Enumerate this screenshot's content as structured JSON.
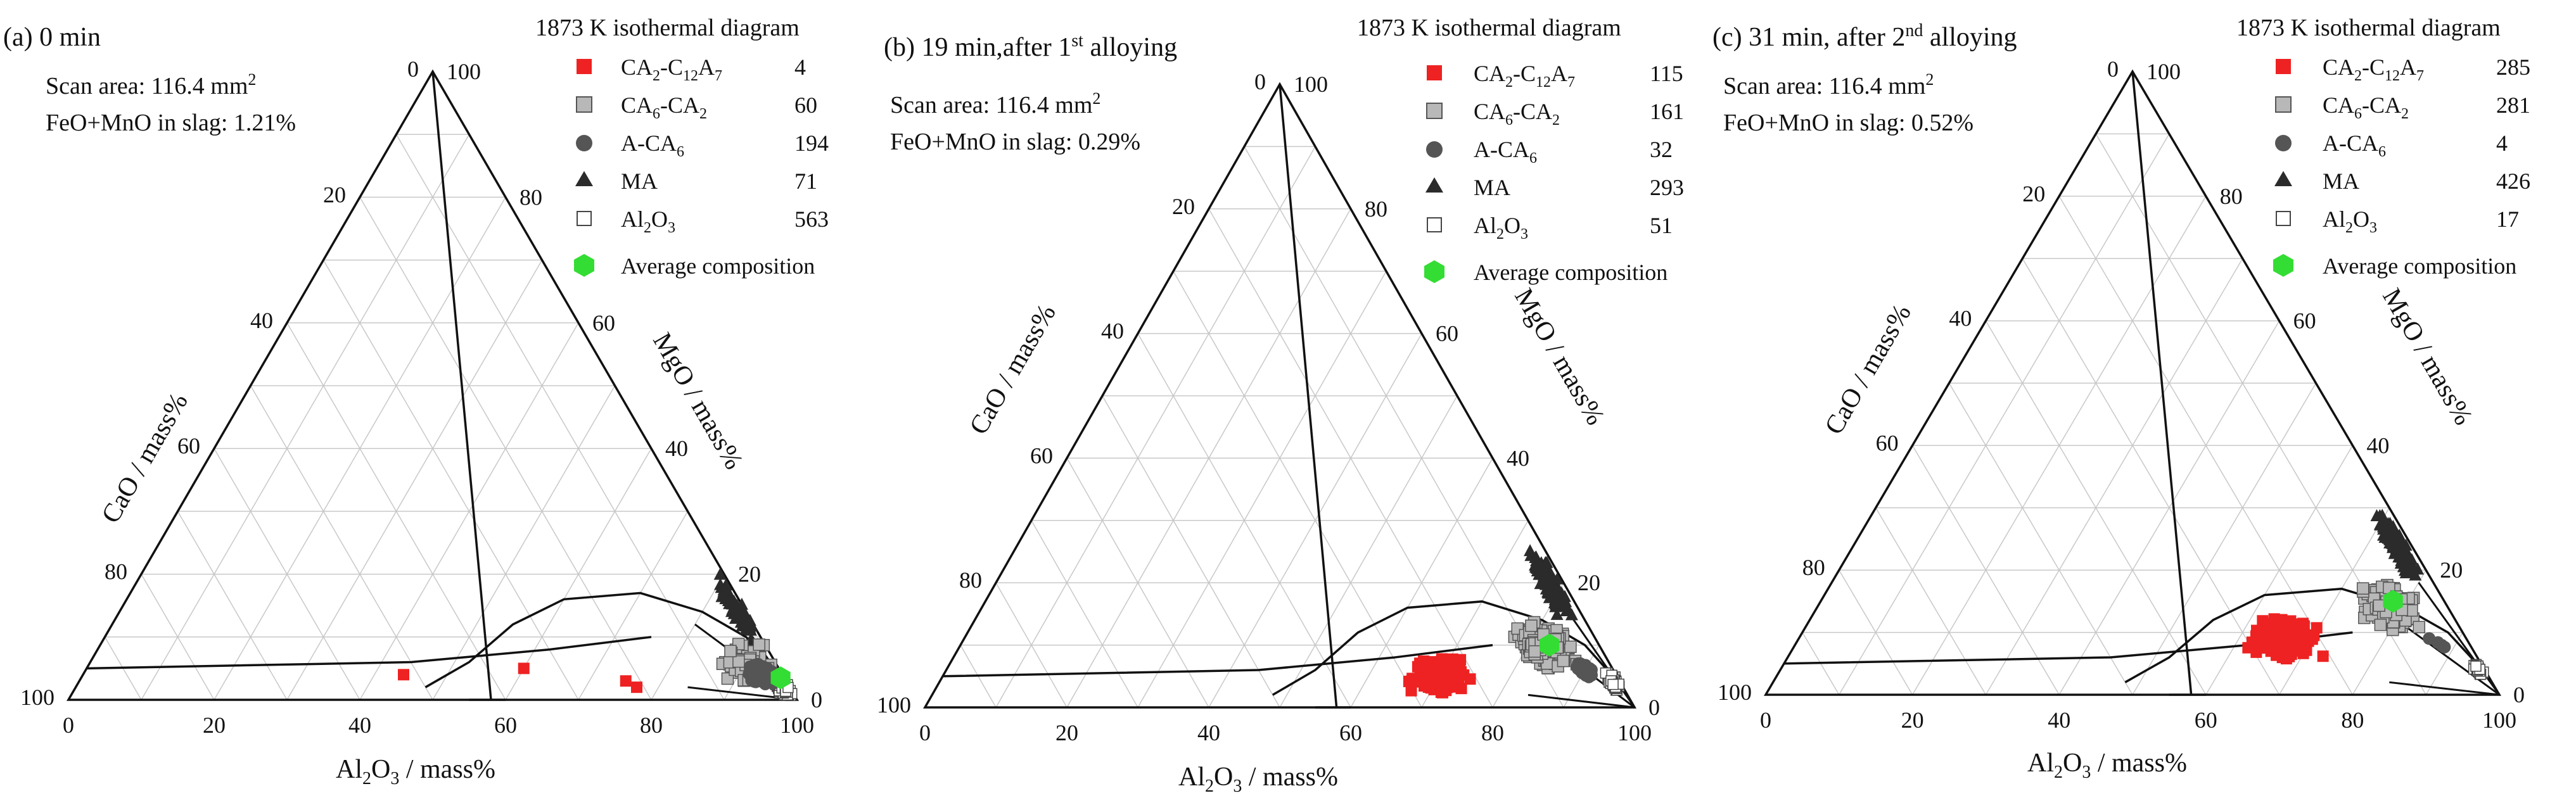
{
  "figure": {
    "background": "#ffffff",
    "colors": {
      "ca2": "#ee2222",
      "ca6": "#b8b8b8",
      "aca6": "#555555",
      "ma": "#2b2b2b",
      "al2o3": "#ffffff",
      "avg": "#33dd33",
      "grid": "#c8c8c8",
      "line": "#111111"
    },
    "legend_header": "1873 K isothermal diagram",
    "legend_labels": {
      "ca2": "CA2-C12A7",
      "ca6": "CA6-CA2",
      "aca6": "A-CA6",
      "ma": "MA",
      "al2o3": "Al2O3",
      "avg": "Average composition"
    },
    "icons": {
      "ca2": "red-square-marker-icon",
      "ca6": "gray-square-marker-icon",
      "aca6": "dark-circle-marker-icon",
      "ma": "black-triangle-marker-icon",
      "al2o3": "open-square-marker-icon",
      "avg": "green-hexagon-marker-icon"
    },
    "axis_labels": {
      "bottom": "Al2O3 / mass%",
      "left": "CaO / mass%",
      "right": "MgO / mass%"
    },
    "tick_labels": {
      "bottom": [
        "0",
        "20",
        "40",
        "60",
        "80",
        "100"
      ],
      "left": [
        "0",
        "20",
        "40",
        "60",
        "80",
        "100"
      ],
      "right": [
        "0",
        "20",
        "40",
        "60",
        "80",
        "100"
      ]
    }
  },
  "panels": [
    {
      "id": "a",
      "title_prefix": "(a) 0 min",
      "title_sup": "",
      "title_suffix": "",
      "scan_area_label": "Scan area: 116.4 mm",
      "scan_area_sup": "2",
      "slag_label": "FeO+MnO in slag: 1.21%",
      "counts": {
        "ca2": "4",
        "ca6": "60",
        "aca6": "194",
        "ma": "71",
        "al2o3": "563"
      }
    },
    {
      "id": "b",
      "title_prefix": "(b) 19 min,after 1",
      "title_sup": "st",
      "title_suffix": " alloying",
      "scan_area_label": "Scan area: 116.4 mm",
      "scan_area_sup": "2",
      "slag_label": "FeO+MnO in slag: 0.29%",
      "counts": {
        "ca2": "115",
        "ca6": "161",
        "aca6": "32",
        "ma": "293",
        "al2o3": "51"
      }
    },
    {
      "id": "c",
      "title_prefix": "(c) 31 min, after 2",
      "title_sup": "nd",
      "title_suffix": " alloying",
      "scan_area_label": "Scan area: 116.4 mm",
      "scan_area_sup": "2",
      "slag_label": "FeO+MnO in slag: 0.52%",
      "counts": {
        "ca2": "285",
        "ca6": "281",
        "aca6": "4",
        "ma": "426",
        "al2o3": "17"
      }
    }
  ],
  "chart_data": [
    {
      "type": "scatter",
      "subtype": "ternary",
      "title": "(a) 0 min",
      "components": [
        "Al2O3",
        "CaO",
        "MgO"
      ],
      "units": "mass%",
      "axis_range": [
        0,
        100
      ],
      "grid_step": 10,
      "legend_position": "top-right",
      "phase_boundaries": [
        {
          "name": "CaO-rich boundary",
          "points": [
            [
              55,
              45,
              0
            ],
            [
              56,
              44,
              0
            ],
            [
              60,
              40,
              0
            ]
          ]
        },
        {
          "name": "spinel field line",
          "points": [
            [
              97,
              0,
              3
            ],
            [
              88,
              2,
              10
            ],
            [
              80,
              6,
              14
            ],
            [
              70,
              13,
              17
            ],
            [
              60,
              24,
              16
            ],
            [
              55,
              33,
              12
            ],
            [
              52,
              42,
              6
            ],
            [
              50,
              46,
              4
            ],
            [
              48,
              50,
              2
            ]
          ]
        },
        {
          "name": "CaO-MgO saturation line",
          "points": [
            [
              0,
              95,
              5
            ],
            [
              44,
              50,
              6
            ],
            [
              62,
              30,
              8
            ],
            [
              75,
              15,
              10
            ]
          ]
        }
      ],
      "series": [
        {
          "name": "CA2-C12A7",
          "count": 4,
          "points": [
            [
              44,
              52,
              4
            ],
            [
              60,
              35,
              5
            ],
            [
              75,
              22,
              3
            ],
            [
              77,
              21,
              2
            ]
          ]
        },
        {
          "name": "CA6-CA2",
          "count": 60,
          "centroid": [
            90,
            4,
            6
          ]
        },
        {
          "name": "A-CA6",
          "count": 194,
          "centroid": [
            93,
            3,
            4
          ]
        },
        {
          "name": "MA",
          "count": 71,
          "centroid": [
            85,
            1,
            14
          ]
        },
        {
          "name": "Al2O3",
          "count": 563,
          "centroid": [
            97,
            1,
            2
          ]
        },
        {
          "name": "Average composition",
          "count": 1,
          "points": [
            [
              96,
              0.5,
              3.5
            ]
          ]
        }
      ]
    },
    {
      "type": "scatter",
      "subtype": "ternary",
      "title": "(b) 19 min,after 1st alloying",
      "components": [
        "Al2O3",
        "CaO",
        "MgO"
      ],
      "units": "mass%",
      "axis_range": [
        0,
        100
      ],
      "grid_step": 10,
      "legend_position": "top-right",
      "phase_boundaries": [
        {
          "name": "CaO-rich boundary",
          "points": [
            [
              55,
              45,
              0
            ],
            [
              56,
              44,
              0
            ],
            [
              60,
              40,
              0
            ]
          ]
        },
        {
          "name": "spinel field line",
          "points": [
            [
              97,
              0,
              3
            ],
            [
              88,
              2,
              10
            ],
            [
              80,
              6,
              14
            ],
            [
              70,
              13,
              17
            ],
            [
              60,
              24,
              16
            ],
            [
              55,
              33,
              12
            ],
            [
              52,
              42,
              6
            ],
            [
              50,
              46,
              4
            ],
            [
              48,
              50,
              2
            ]
          ]
        },
        {
          "name": "CaO-MgO saturation line",
          "points": [
            [
              0,
              95,
              5
            ],
            [
              44,
              50,
              6
            ],
            [
              62,
              30,
              8
            ],
            [
              75,
              15,
              10
            ]
          ]
        }
      ],
      "series": [
        {
          "name": "CA2-C12A7",
          "count": 115,
          "centroid": [
            70,
            25,
            5
          ]
        },
        {
          "name": "CA6-CA2",
          "count": 161,
          "centroid": [
            82,
            8,
            10
          ]
        },
        {
          "name": "A-CA6",
          "count": 32,
          "centroid": [
            90,
            4,
            6
          ]
        },
        {
          "name": "MA",
          "count": 293,
          "centroid": [
            78,
            2,
            20
          ]
        },
        {
          "name": "Al2O3",
          "count": 51,
          "centroid": [
            95,
            1,
            4
          ]
        },
        {
          "name": "Average composition",
          "count": 1,
          "points": [
            [
              83,
              7,
              10
            ]
          ]
        }
      ]
    },
    {
      "type": "scatter",
      "subtype": "ternary",
      "title": "(c) 31 min, after 2nd alloying",
      "components": [
        "Al2O3",
        "CaO",
        "MgO"
      ],
      "units": "mass%",
      "axis_range": [
        0,
        100
      ],
      "grid_step": 10,
      "legend_position": "top-right",
      "phase_boundaries": [
        {
          "name": "CaO-rich boundary",
          "points": [
            [
              55,
              45,
              0
            ],
            [
              56,
              44,
              0
            ],
            [
              60,
              40,
              0
            ]
          ]
        },
        {
          "name": "spinel field line",
          "points": [
            [
              97,
              0,
              3
            ],
            [
              88,
              2,
              10
            ],
            [
              80,
              6,
              14
            ],
            [
              70,
              13,
              17
            ],
            [
              60,
              24,
              16
            ],
            [
              55,
              33,
              12
            ],
            [
              52,
              42,
              6
            ],
            [
              50,
              46,
              4
            ],
            [
              48,
              50,
              2
            ]
          ]
        },
        {
          "name": "CaO-MgO saturation line",
          "points": [
            [
              0,
              95,
              5
            ],
            [
              44,
              50,
              6
            ],
            [
              62,
              30,
              8
            ],
            [
              75,
              15,
              10
            ]
          ]
        }
      ],
      "series": [
        {
          "name": "CA2-C12A7",
          "count": 285,
          "centroid": [
            66,
            25,
            9
          ]
        },
        {
          "name": "CA6-CA2",
          "count": 281,
          "centroid": [
            78,
            8,
            14
          ]
        },
        {
          "name": "A-CA6",
          "count": 4,
          "centroid": [
            88,
            4,
            8
          ]
        },
        {
          "name": "MA",
          "count": 426,
          "centroid": [
            74,
            2,
            24
          ]
        },
        {
          "name": "Al2O3",
          "count": 17,
          "centroid": [
            95,
            1,
            4
          ]
        },
        {
          "name": "Average composition",
          "count": 1,
          "points": [
            [
              78,
              7,
              15
            ]
          ]
        }
      ]
    }
  ]
}
